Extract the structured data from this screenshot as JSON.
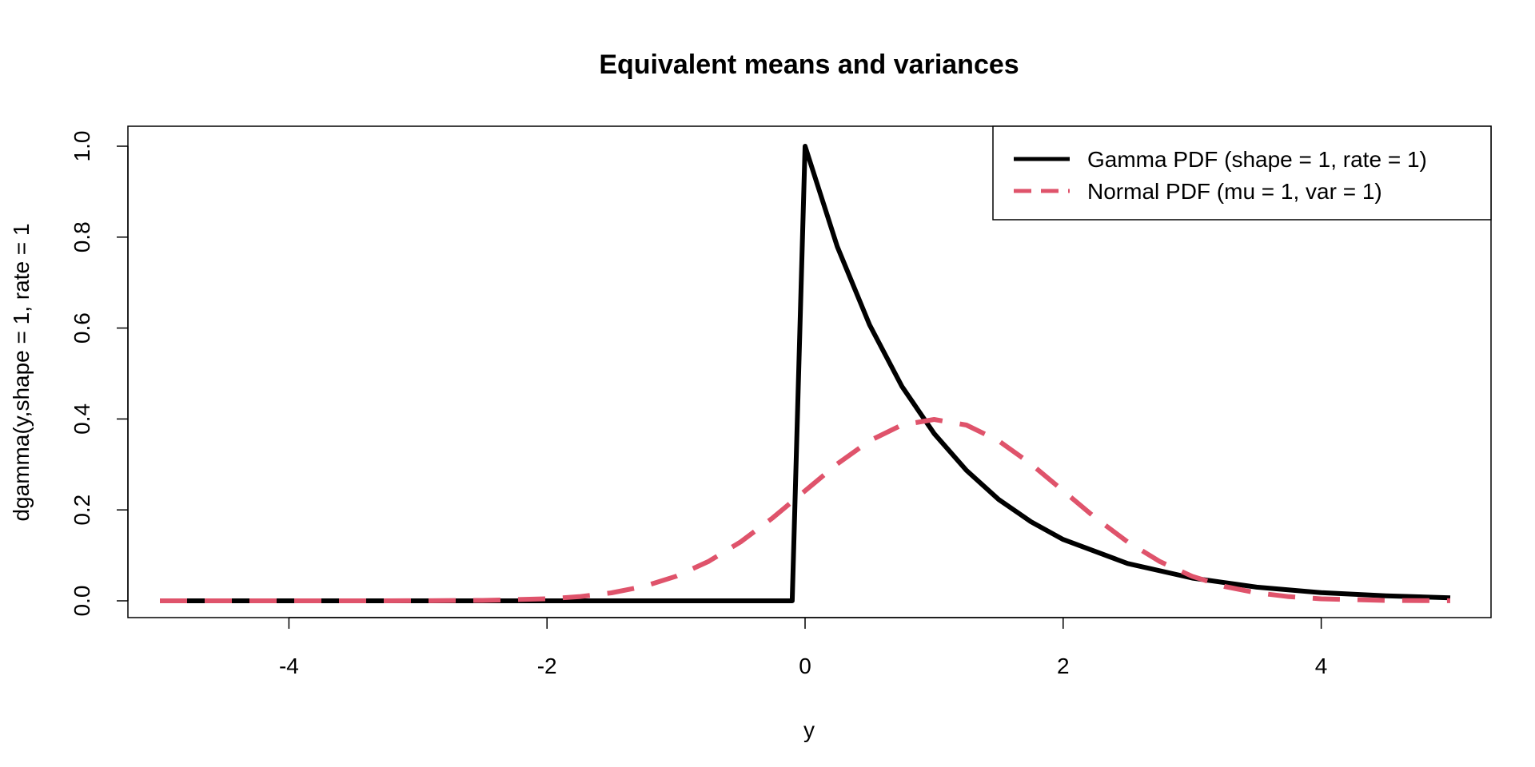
{
  "chart_data": {
    "type": "line",
    "title": "Equivalent means and variances",
    "xlabel": "y",
    "ylabel": "dgamma(y,shape = 1, rate = 1",
    "xlim": [
      -5,
      5
    ],
    "ylim": [
      0,
      1
    ],
    "x_ticks": [
      -4,
      -2,
      0,
      2,
      4
    ],
    "x_tick_labels": [
      "-4",
      "-2",
      "0",
      "2",
      "4"
    ],
    "y_ticks": [
      0,
      0.2,
      0.4,
      0.6,
      0.8,
      1
    ],
    "y_tick_labels": [
      "0.0",
      "0.2",
      "0.4",
      "0.6",
      "0.8",
      "1.0"
    ],
    "grid": false,
    "legend_position": "top-right",
    "series": [
      {
        "name": "Gamma PDF (shape = 1, rate = 1)",
        "color": "#000000",
        "dash": "solid",
        "x": [
          -5,
          -4,
          -3,
          -2,
          -1,
          -0.1,
          0,
          0.25,
          0.5,
          0.75,
          1,
          1.25,
          1.5,
          1.75,
          2,
          2.5,
          3,
          3.5,
          4,
          4.5,
          5
        ],
        "y": [
          0,
          0,
          0,
          0,
          0,
          0,
          1,
          0.779,
          0.607,
          0.472,
          0.368,
          0.287,
          0.223,
          0.174,
          0.135,
          0.082,
          0.05,
          0.03,
          0.018,
          0.011,
          0.0067
        ]
      },
      {
        "name": "Normal PDF (mu = 1, var = 1)",
        "color": "#DF536B",
        "dash": "dashed",
        "x": [
          -5,
          -4.5,
          -4,
          -3.5,
          -3,
          -2.5,
          -2,
          -1.75,
          -1.5,
          -1.25,
          -1,
          -0.75,
          -0.5,
          -0.25,
          0,
          0.25,
          0.5,
          0.75,
          1,
          1.25,
          1.5,
          1.75,
          2,
          2.25,
          2.5,
          2.75,
          3,
          3.25,
          3.5,
          3.75,
          4,
          4.5,
          5
        ],
        "y": [
          0,
          0,
          0,
          0,
          0.0001,
          0.0009,
          0.0044,
          0.0091,
          0.0175,
          0.0317,
          0.054,
          0.0863,
          0.1295,
          0.1826,
          0.242,
          0.3011,
          0.3521,
          0.3867,
          0.3989,
          0.3867,
          0.3521,
          0.3011,
          0.242,
          0.1826,
          0.1295,
          0.0863,
          0.054,
          0.0317,
          0.0175,
          0.0091,
          0.0044,
          0.0009,
          0.0001
        ]
      }
    ]
  }
}
